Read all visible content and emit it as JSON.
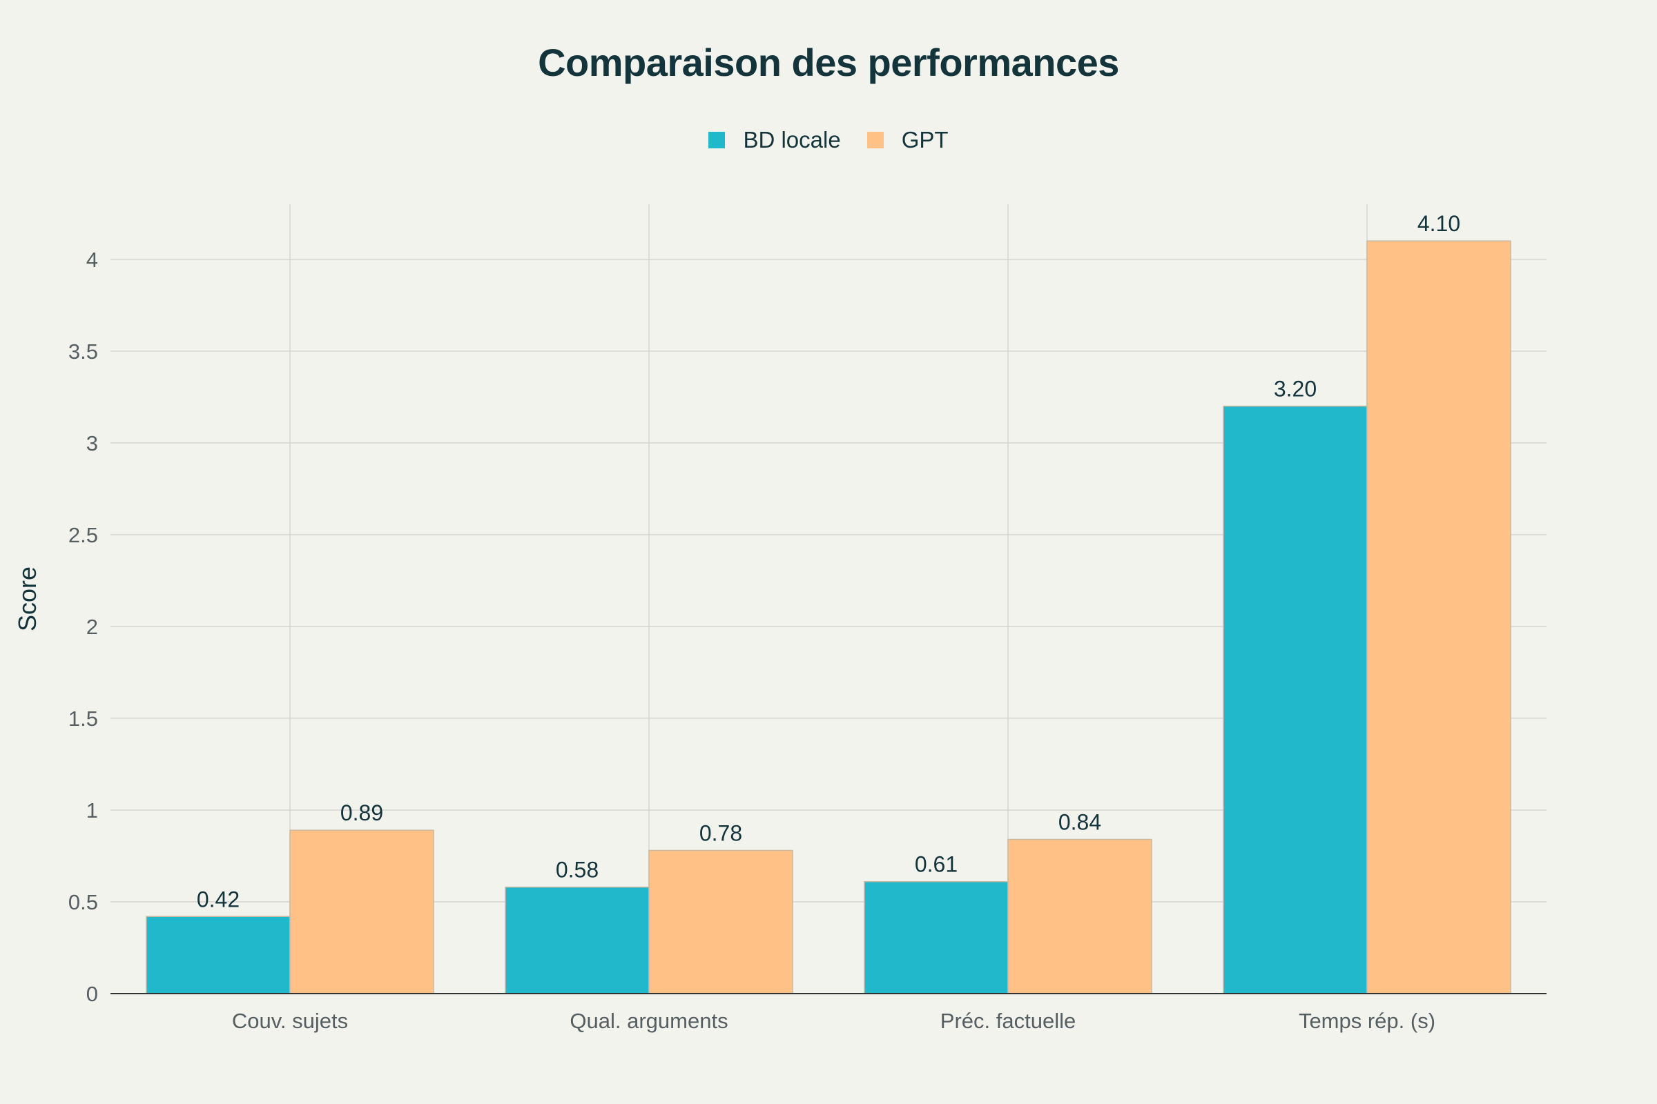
{
  "chart_data": {
    "type": "bar",
    "title": "Comparaison des performances",
    "xlabel": "",
    "ylabel": "Score",
    "categories": [
      "Couv. sujets",
      "Qual. arguments",
      "Préc. factuelle",
      "Temps rép. (s)"
    ],
    "series": [
      {
        "name": "BD locale",
        "values": [
          0.42,
          0.58,
          0.61,
          3.2
        ],
        "labels": [
          "0.42",
          "0.58",
          "0.61",
          "3.20"
        ],
        "color": "#21b8cc"
      },
      {
        "name": "GPT",
        "values": [
          0.89,
          0.78,
          0.84,
          4.1
        ],
        "labels": [
          "0.89",
          "0.78",
          "0.84",
          "4.10"
        ],
        "color": "#ffc185"
      }
    ],
    "ylim": [
      0,
      4.3
    ],
    "yticks": [
      0,
      0.5,
      1,
      1.5,
      2,
      2.5,
      3,
      3.5,
      4
    ],
    "ytick_labels": [
      "0",
      "0.5",
      "1",
      "1.5",
      "2",
      "2.5",
      "3",
      "3.5",
      "4"
    ],
    "grid": true,
    "legend_position": "top-center"
  },
  "colors": {
    "background": "#f3f3ee",
    "grid": "#d4d4d0",
    "axis": "#333333",
    "text": "#13343b",
    "tick_text": "#555e60",
    "bar_outline": "#c8b8a0"
  }
}
